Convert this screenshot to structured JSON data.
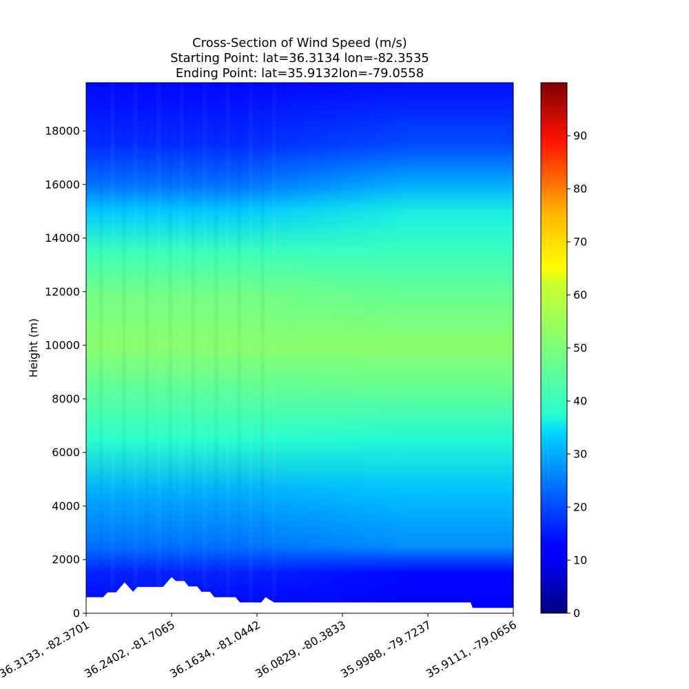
{
  "chart_data": {
    "type": "heatmap",
    "title_lines": [
      "Cross-Section of Wind Speed (m/s)",
      "Starting Point: lat=36.3134 lon=-82.3535",
      "Ending Point: lat=35.9132lon=-79.0558"
    ],
    "ylabel": "Height (m)",
    "xlabel": "",
    "x_tick_labels": [
      "36.3133, -82.3701",
      "36.2402, -81.7065",
      "36.1634, -81.0442",
      "36.0829, -80.3833",
      "35.9988, -79.7237",
      "35.9111, -79.0656"
    ],
    "y_ticks": [
      0,
      2000,
      4000,
      6000,
      8000,
      10000,
      12000,
      14000,
      16000,
      18000
    ],
    "ylim": [
      0,
      19800
    ],
    "colorbar": {
      "label": "",
      "ticks": [
        0,
        10,
        20,
        30,
        40,
        50,
        60,
        70,
        80,
        90
      ],
      "range": [
        0,
        100
      ],
      "colormap": "jet"
    },
    "wind_speed_profile": {
      "description_of_values": "approximate wind speed (m/s) vs height (m)",
      "heights": [
        0,
        1500,
        2500,
        4500,
        6500,
        8500,
        10000,
        12000,
        13500,
        15000,
        16000,
        17500,
        19800
      ],
      "west_speed": [
        12,
        16,
        24,
        30,
        38,
        46,
        52,
        48,
        40,
        33,
        24,
        17,
        13
      ],
      "east_speed": [
        12,
        13,
        27,
        32,
        37,
        47,
        52,
        46,
        40,
        36,
        30,
        20,
        14
      ]
    },
    "terrain_height_m": [
      [
        0,
        600
      ],
      [
        0.04,
        600
      ],
      [
        0.05,
        780
      ],
      [
        0.07,
        780
      ],
      [
        0.09,
        1150
      ],
      [
        0.11,
        800
      ],
      [
        0.12,
        980
      ],
      [
        0.18,
        980
      ],
      [
        0.2,
        1350
      ],
      [
        0.21,
        1200
      ],
      [
        0.23,
        1200
      ],
      [
        0.24,
        1000
      ],
      [
        0.26,
        1000
      ],
      [
        0.27,
        800
      ],
      [
        0.29,
        800
      ],
      [
        0.3,
        600
      ],
      [
        0.35,
        600
      ],
      [
        0.36,
        400
      ],
      [
        0.41,
        400
      ],
      [
        0.42,
        600
      ],
      [
        0.44,
        400
      ],
      [
        0.9,
        400
      ],
      [
        0.905,
        200
      ],
      [
        1.0,
        200
      ]
    ]
  }
}
